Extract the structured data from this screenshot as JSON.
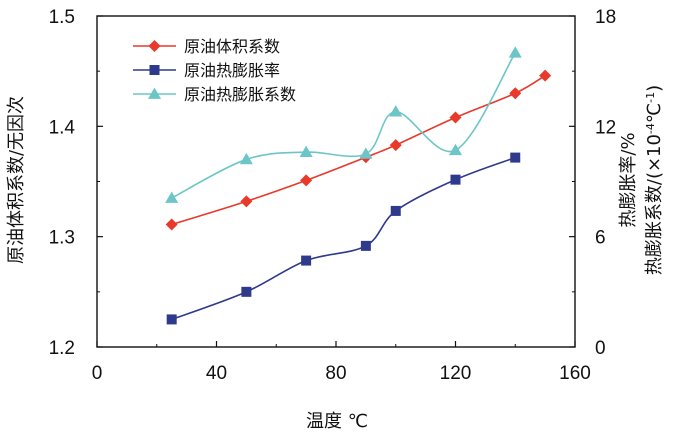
{
  "chart_data": {
    "type": "line",
    "xlabel": "温度 ℃",
    "ylabel_left": "原油体积系数/无因次",
    "ylabel_right_line1": "热膨胀率/%",
    "ylabel_right_line2_prefix": "热膨胀系数/(×10",
    "ylabel_right_line2_exp": "-4",
    "ylabel_right_line2_suffix": "℃",
    "ylabel_right_line2_exp2": "-1",
    "ylabel_right_line2_end": ")",
    "xlim": [
      0,
      160
    ],
    "x_ticks": [
      "0",
      "40",
      "80",
      "120",
      "160"
    ],
    "ylim_left": [
      1.2,
      1.5
    ],
    "y_ticks_left": [
      "1.2",
      "1.3",
      "1.4",
      "1.5"
    ],
    "ylim_right": [
      0,
      18
    ],
    "y_ticks_right": [
      "0",
      "6",
      "12",
      "18"
    ],
    "series": [
      {
        "name": "原油体积系数",
        "axis": "left",
        "color": "#e8392b",
        "marker": "diamond",
        "x": [
          25,
          50,
          70,
          90,
          100,
          120,
          140,
          150
        ],
        "y": [
          1.311,
          1.332,
          1.351,
          1.372,
          1.383,
          1.408,
          1.43,
          1.446
        ]
      },
      {
        "name": "原油热膨胀率",
        "axis": "right",
        "color": "#2e3a8c",
        "marker": "square",
        "x": [
          25,
          50,
          70,
          90,
          100,
          120,
          140
        ],
        "y": [
          1.5,
          3.0,
          4.7,
          5.5,
          7.4,
          9.1,
          10.3
        ]
      },
      {
        "name": "原油热膨胀系数",
        "axis": "right",
        "color": "#6cc6c8",
        "marker": "triangle",
        "x": [
          25,
          50,
          70,
          90,
          100,
          120,
          140
        ],
        "y": [
          8.1,
          10.2,
          10.6,
          10.5,
          12.8,
          10.7,
          16.0
        ]
      }
    ]
  }
}
